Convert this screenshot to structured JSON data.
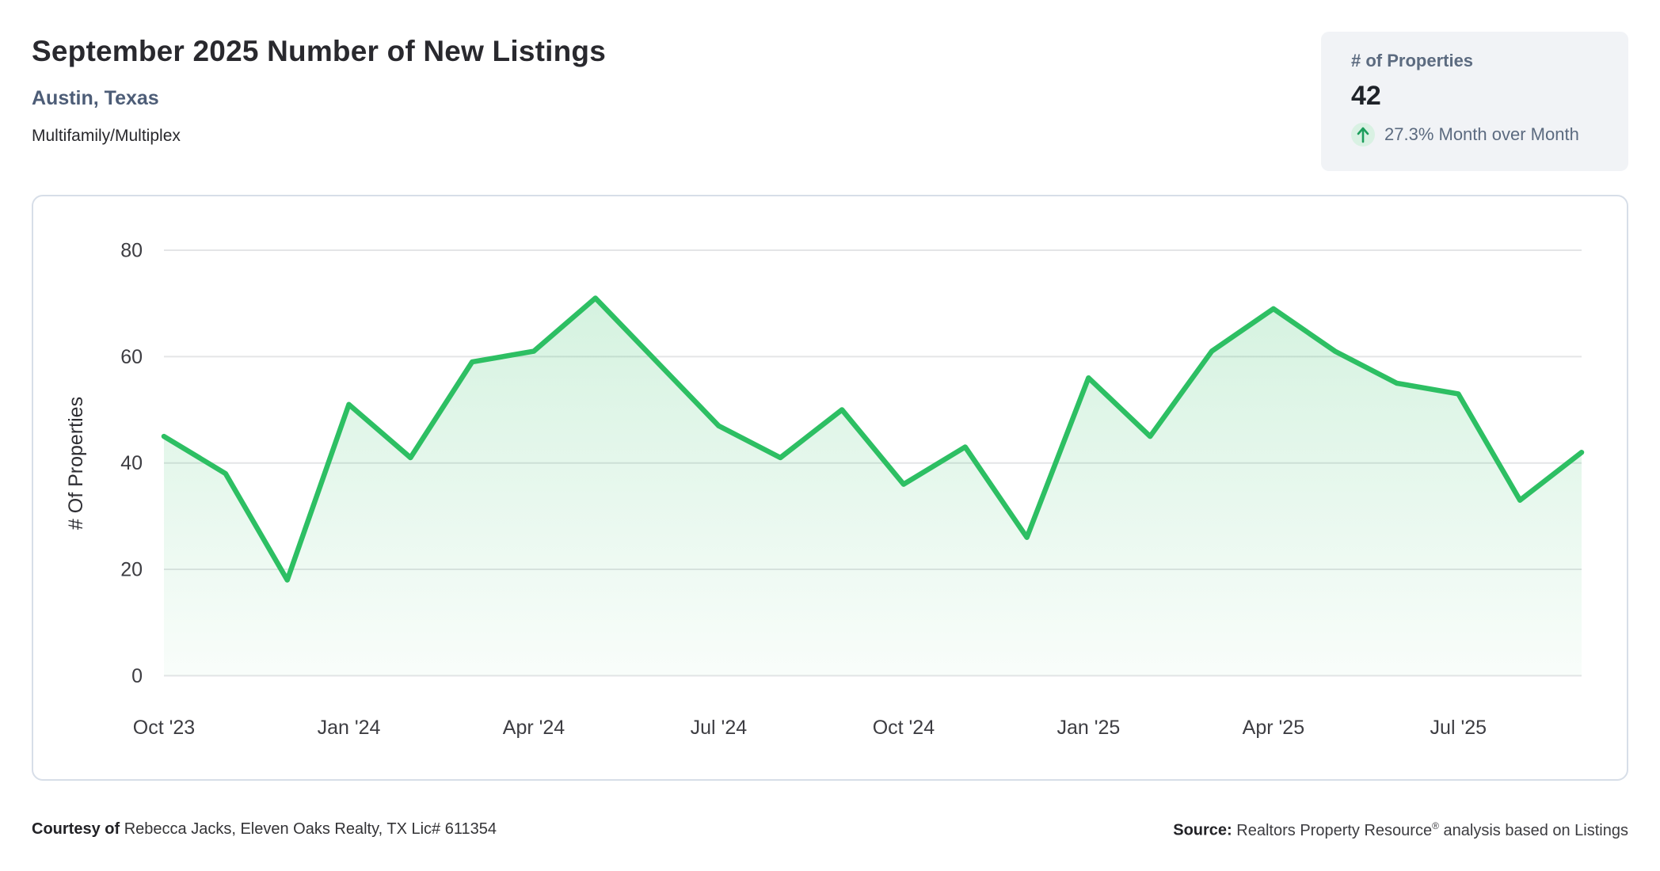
{
  "header": {
    "title": "September 2025 Number of New Listings",
    "subtitle": "Austin, Texas",
    "property_type": "Multifamily/Multiplex"
  },
  "stat_card": {
    "label": "# of Properties",
    "value": "42",
    "trend_icon": "up-arrow-icon",
    "trend_text": "27.3% Month over Month",
    "trend_arrow_color": "#1d9e5d",
    "trend_circle_color": "#d9f1e3"
  },
  "chart_data": {
    "type": "area",
    "title": "",
    "xlabel": "",
    "ylabel": "# Of Properties",
    "x": [
      "Oct '23",
      "Nov '23",
      "Dec '23",
      "Jan '24",
      "Feb '24",
      "Mar '24",
      "Apr '24",
      "May '24",
      "Jun '24",
      "Jul '24",
      "Aug '24",
      "Sep '24",
      "Oct '24",
      "Nov '24",
      "Dec '24",
      "Jan '25",
      "Feb '25",
      "Mar '25",
      "Apr '25",
      "May '25",
      "Jun '25",
      "Jul '25",
      "Aug '25",
      "Sep '25"
    ],
    "values": [
      45,
      38,
      18,
      51,
      41,
      59,
      61,
      71,
      59,
      47,
      41,
      50,
      36,
      43,
      26,
      56,
      45,
      61,
      69,
      61,
      55,
      53,
      33,
      42
    ],
    "ylim": [
      0,
      80
    ],
    "yticks": [
      0,
      20,
      40,
      60,
      80
    ],
    "xtick_labels": [
      "Oct '23",
      "Jan '24",
      "Apr '24",
      "Jul '24",
      "Oct '24",
      "Jan '25",
      "Apr '25",
      "Jul '25"
    ],
    "grid": true,
    "legend": "none",
    "line_color": "#2dbf63",
    "fill_color": "#2dbf63",
    "fill_opacity_top": 0.2,
    "fill_opacity_bottom": 0.03,
    "grid_color": "#e4e5e7",
    "tick_color": "#3d3d42"
  },
  "footer": {
    "courtesy_label": "Courtesy of",
    "courtesy_text": "Rebecca Jacks, Eleven Oaks Realty, TX Lic# 611354",
    "source_label": "Source:",
    "source_text_before_reg": "Realtors Property Resource",
    "reg_symbol": "®",
    "source_text_after_reg": "analysis based on Listings"
  }
}
